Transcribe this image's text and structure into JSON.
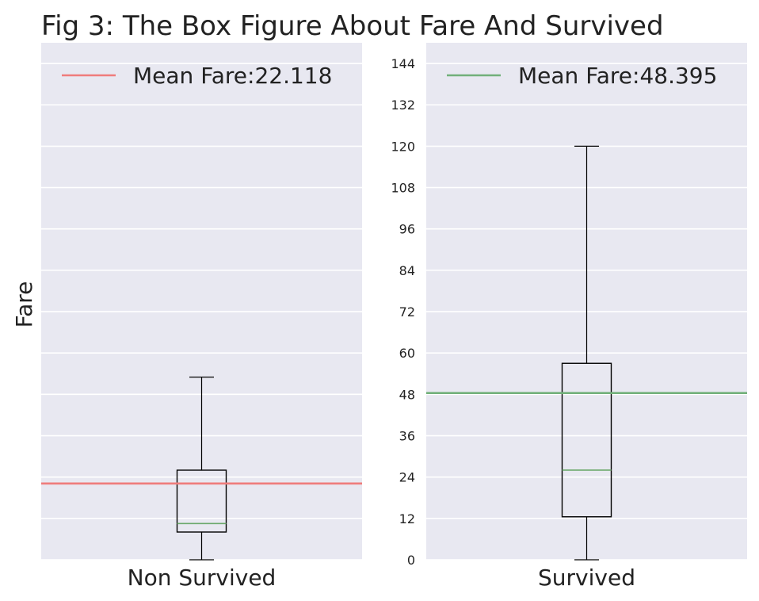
{
  "chart_data": {
    "type": "box",
    "title": "Fig 3: The Box Figure About Fare And Survived",
    "ylabel": "Fare",
    "ylim": [
      0,
      150
    ],
    "yticks": [
      0,
      12,
      24,
      36,
      48,
      60,
      72,
      84,
      96,
      108,
      120,
      132,
      144
    ],
    "grid": true,
    "legend_position": "top",
    "panels": [
      {
        "category": "Non Survived",
        "show_yticks": false,
        "box": {
          "whisker_low": 0,
          "q1": 8.05,
          "median": 10.5,
          "q3": 26.0,
          "whisker_high": 53.0
        },
        "mean_line": {
          "value": 22.118,
          "label": "Mean Fare:22.118",
          "color": "#ef7c7c"
        },
        "median_color": "#6aa86a"
      },
      {
        "category": "Survived",
        "show_yticks": true,
        "box": {
          "whisker_low": 0,
          "q1": 12.475,
          "median": 26.0,
          "q3": 57.0,
          "whisker_high": 120.0
        },
        "mean_line": {
          "value": 48.395,
          "label": "Mean Fare:48.395",
          "color": "#72b07a"
        },
        "median_color": "#6aa86a"
      }
    ]
  }
}
